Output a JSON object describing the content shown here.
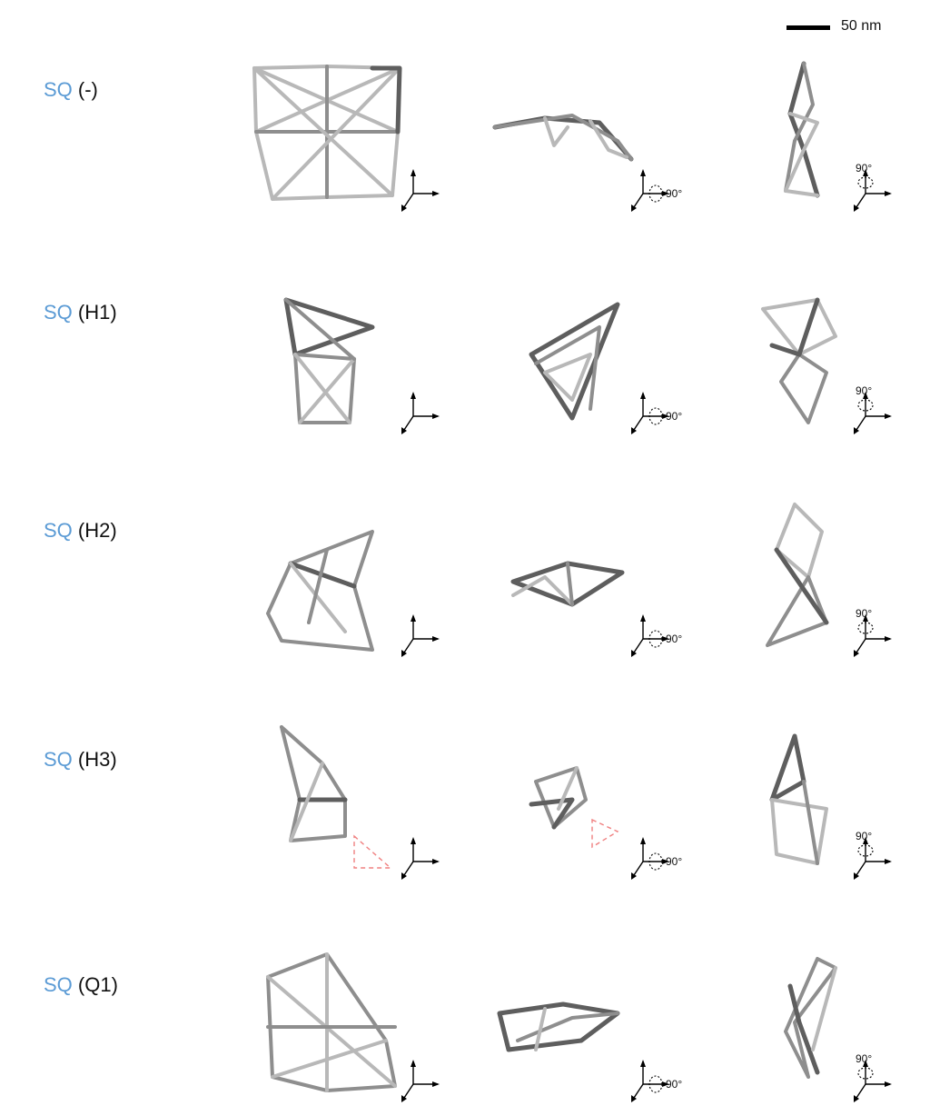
{
  "scale_bar": {
    "label": "50 nm"
  },
  "rotation_label": "90°",
  "colors": {
    "sq_prefix": "#5b9bd5",
    "strut_light": "#b8b8b8",
    "strut_mid": "#8e8e8e",
    "strut_dark": "#5e5e5e",
    "highlight": "#f08080"
  },
  "rows": [
    {
      "prefix": "SQ",
      "suffix": "(-)"
    },
    {
      "prefix": "SQ",
      "suffix": "(H1)"
    },
    {
      "prefix": "SQ",
      "suffix": "(H2)"
    },
    {
      "prefix": "SQ",
      "suffix": "(H3)"
    },
    {
      "prefix": "SQ",
      "suffix": "(Q1)"
    }
  ]
}
